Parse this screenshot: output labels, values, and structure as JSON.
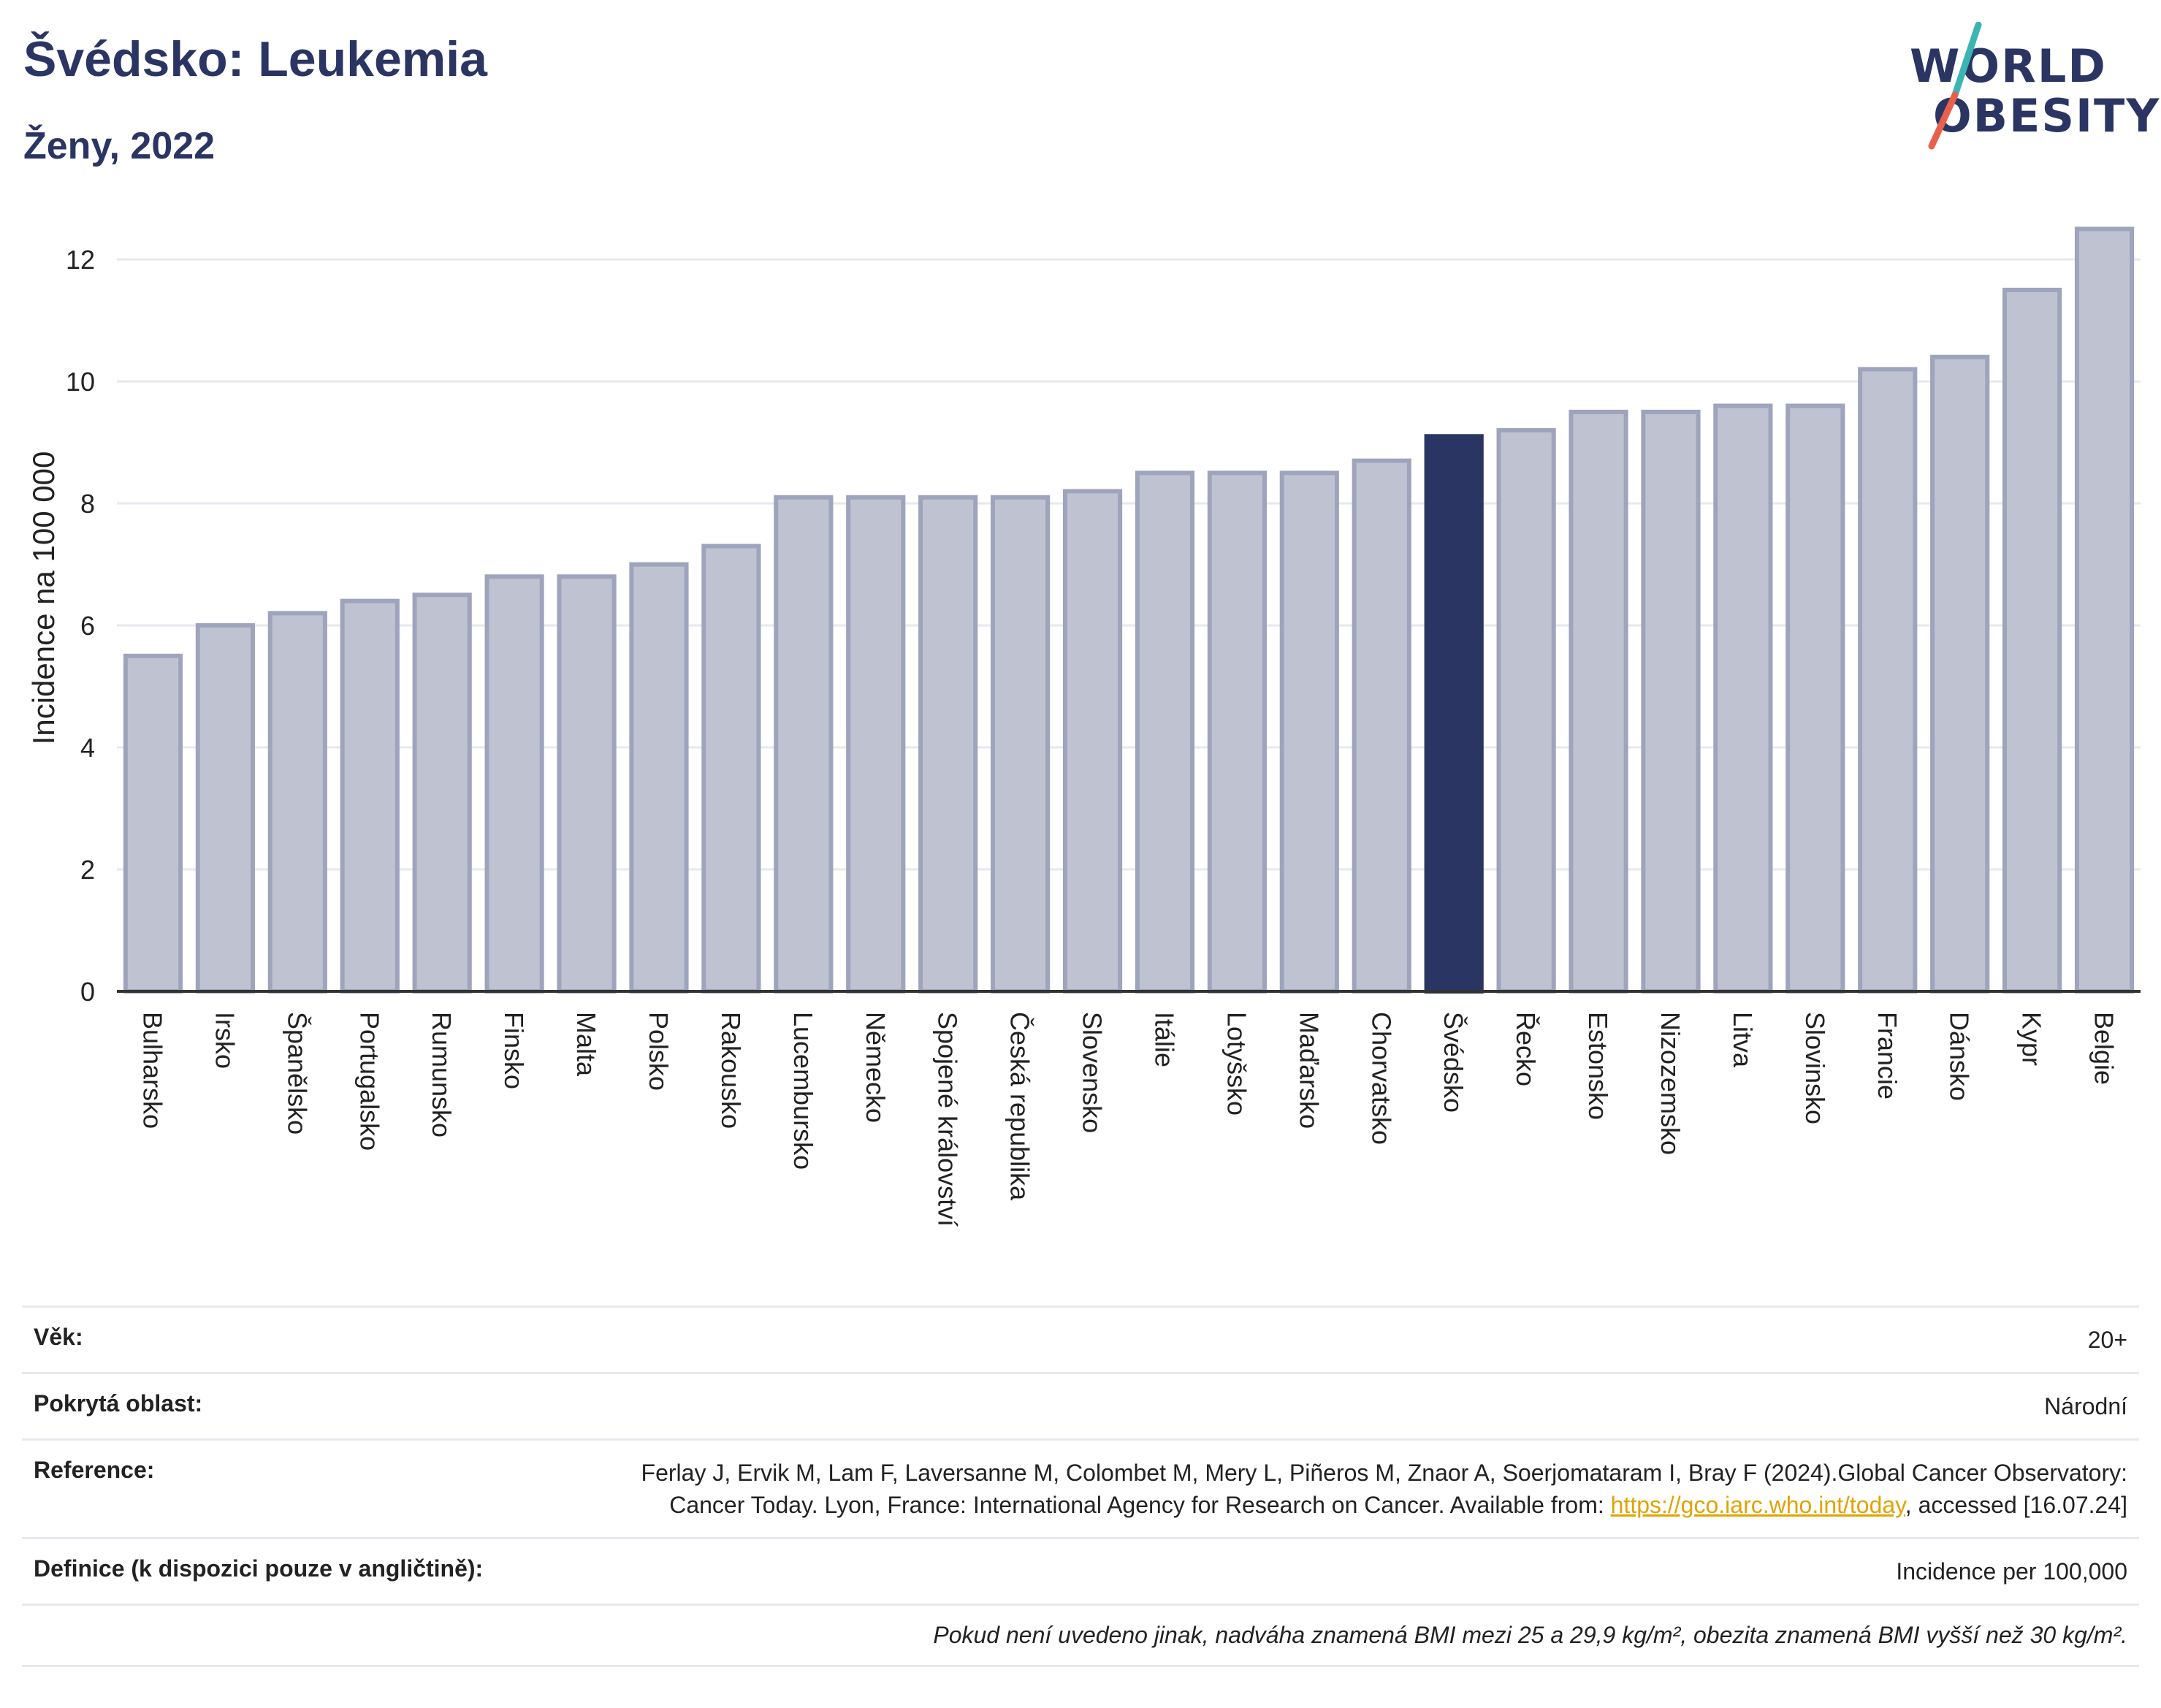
{
  "header": {
    "title": "Švédsko: Leukemia",
    "subtitle": "Ženy, 2022"
  },
  "logo": {
    "line1": "WORLD",
    "line2": "OBESITY",
    "colors": {
      "text": "#2a3563",
      "slash_top": "#3cb4b4",
      "slash_bottom": "#e8604c"
    }
  },
  "chart_data": {
    "type": "bar",
    "ylabel": "Incidence na 100 000",
    "ylim": [
      0,
      12.9
    ],
    "yticks": [
      0,
      2,
      4,
      6,
      8,
      10,
      12
    ],
    "grid": true,
    "highlight": "Švédsko",
    "colors": {
      "bar": "#bfc3d1",
      "bar_stroke": "#9ea4bc",
      "highlight": "#2a3563"
    },
    "categories": [
      "Bulharsko",
      "Irsko",
      "Španělsko",
      "Portugalsko",
      "Rumunsko",
      "Finsko",
      "Malta",
      "Polsko",
      "Rakousko",
      "Lucembursko",
      "Německo",
      "Spojené království",
      "Česká republika",
      "Slovensko",
      "Itálie",
      "Lotyšsko",
      "Maďarsko",
      "Chorvatsko",
      "Švédsko",
      "Řecko",
      "Estonsko",
      "Nizozemsko",
      "Litva",
      "Slovinsko",
      "Francie",
      "Dánsko",
      "Kypr",
      "Belgie"
    ],
    "values": [
      5.5,
      6.0,
      6.2,
      6.4,
      6.5,
      6.8,
      6.8,
      7.0,
      7.3,
      8.1,
      8.1,
      8.1,
      8.1,
      8.2,
      8.5,
      8.5,
      8.5,
      8.7,
      9.1,
      9.2,
      9.5,
      9.5,
      9.6,
      9.6,
      10.2,
      10.4,
      11.5,
      12.5
    ]
  },
  "info": {
    "age_label": "Věk:",
    "age_value": "20+",
    "area_label": "Pokrytá oblast:",
    "area_value": "Národní",
    "reference_label": "Reference:",
    "reference_text": "Ferlay J, Ervik M, Lam F, Laversanne M, Colombet M, Mery L, Piñeros M, Znaor A, Soerjomataram I, Bray F (2024).Global Cancer Observatory: Cancer Today. Lyon, France: International Agency for Research on Cancer. Available from:",
    "reference_link": "https://gco.iarc.who.int/today",
    "reference_suffix": ", accessed [16.07.24]",
    "definition_label": "Definice (k dispozici pouze v angličtině):",
    "definition_value": "Incidence per 100,000",
    "note": "Pokud není uvedeno jinak, nadváha znamená BMI mezi 25 a 29,9 kg/m², obezita znamená BMI vyšší než 30 kg/m²."
  }
}
